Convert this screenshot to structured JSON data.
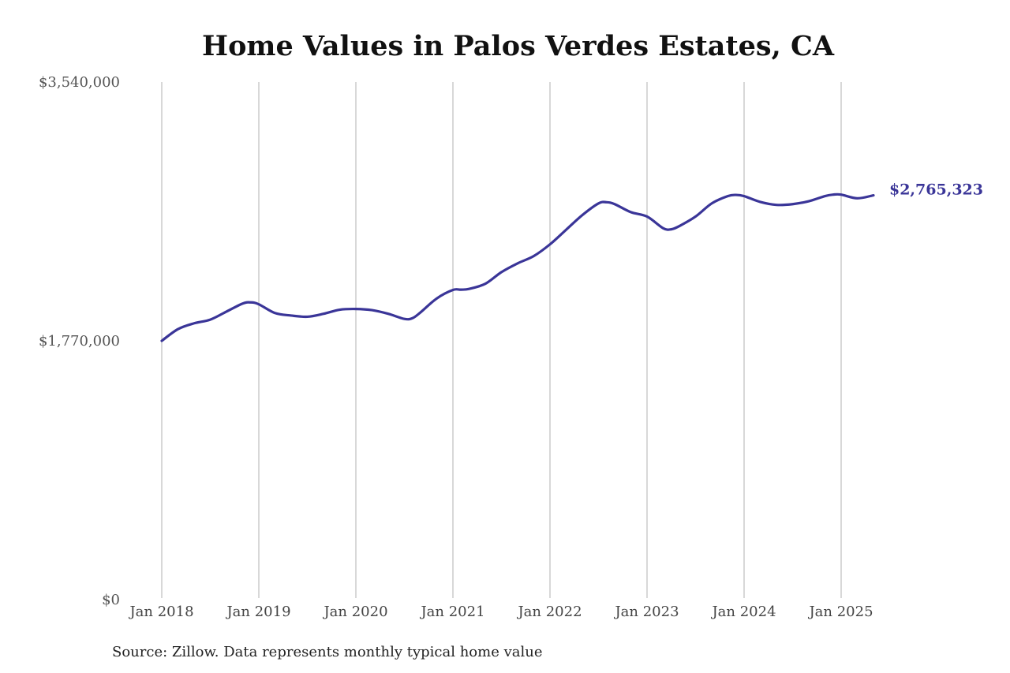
{
  "chart_data": {
    "type": "line",
    "title": "Home Values in Palos Verdes Estates, CA",
    "source": "Source: Zillow. Data represents monthly typical home value",
    "ylim": [
      0,
      3540000
    ],
    "y_ticks": [
      {
        "value": 0,
        "label": "$0"
      },
      {
        "value": 1770000,
        "label": "$1,770,000"
      },
      {
        "value": 3540000,
        "label": "$3,540,000"
      }
    ],
    "x_ticks": [
      {
        "value": 2018.0,
        "label": "Jan 2018"
      },
      {
        "value": 2019.0,
        "label": "Jan 2019"
      },
      {
        "value": 2020.0,
        "label": "Jan 2020"
      },
      {
        "value": 2021.0,
        "label": "Jan 2021"
      },
      {
        "value": 2022.0,
        "label": "Jan 2022"
      },
      {
        "value": 2023.0,
        "label": "Jan 2023"
      },
      {
        "value": 2024.0,
        "label": "Jan 2024"
      },
      {
        "value": 2025.0,
        "label": "Jan 2025"
      }
    ],
    "grid": "vertical",
    "line_color": "#3a3598",
    "end_label": "$2,765,323",
    "series": [
      {
        "x": [
          2018.0,
          2018.1667,
          2018.3333,
          2018.5,
          2018.6667,
          2018.8333,
          2018.9167,
          2019.0,
          2019.1667,
          2019.3333,
          2019.5,
          2019.6667,
          2019.8333,
          2020.0,
          2020.1667,
          2020.3333,
          2020.5,
          2020.5833,
          2020.6667,
          2020.8333,
          2021.0,
          2021.0833,
          2021.1667,
          2021.3333,
          2021.5,
          2021.6667,
          2021.8333,
          2022.0,
          2022.1667,
          2022.3333,
          2022.5,
          2022.5833,
          2022.6667,
          2022.8333,
          2023.0,
          2023.1667,
          2023.25,
          2023.3333,
          2023.5,
          2023.6667,
          2023.8333,
          2023.9167,
          2024.0,
          2024.1667,
          2024.3333,
          2024.5,
          2024.6667,
          2024.8333,
          2024.9167,
          2025.0,
          2025.1667,
          2025.3333
        ],
        "y": [
          1770000,
          1850000,
          1890000,
          1915000,
          1970000,
          2025000,
          2033000,
          2020000,
          1960000,
          1943000,
          1935000,
          1955000,
          1983000,
          1988000,
          1980000,
          1955000,
          1920000,
          1925000,
          1965000,
          2060000,
          2118000,
          2120000,
          2125000,
          2160000,
          2240000,
          2300000,
          2350000,
          2430000,
          2530000,
          2630000,
          2710000,
          2718000,
          2705000,
          2650000,
          2620000,
          2540000,
          2533000,
          2555000,
          2620000,
          2710000,
          2760000,
          2768000,
          2760000,
          2720000,
          2700000,
          2705000,
          2725000,
          2760000,
          2770000,
          2770000,
          2745000,
          2765323
        ]
      }
    ]
  }
}
